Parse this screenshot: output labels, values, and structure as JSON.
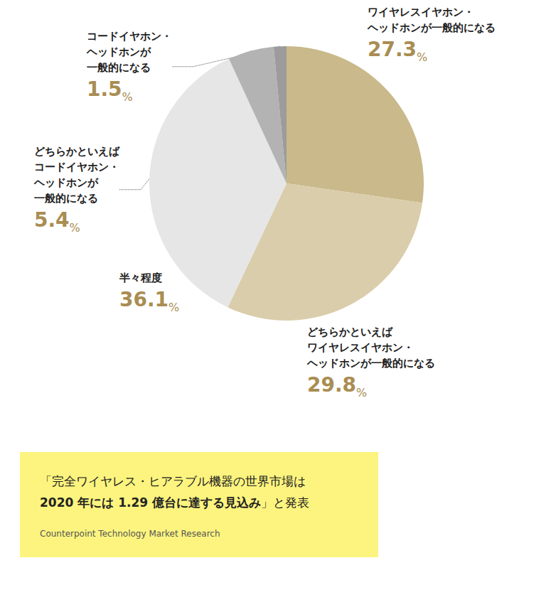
{
  "chart_data": {
    "type": "pie",
    "categories": [
      "ワイヤレスイヤホン・\nヘッドホンが一般的になる",
      "どちらかといえば\nワイヤレスイヤホン・\nヘッドホンが一般的になる",
      "半々程度",
      "どちらかといえば\nコードイヤホン・\nヘッドホンが\n一般的になる",
      "コードイヤホン・\nヘッドホンが\n一般的になる"
    ],
    "values": [
      27.3,
      29.8,
      36.1,
      5.4,
      1.5
    ],
    "value_labels": [
      "27.3%",
      "29.8%",
      "36.1%",
      "5.4%",
      "1.5%"
    ],
    "colors": [
      "#c9b98b",
      "#dacdab",
      "#e6e6e6",
      "#b3b3b3",
      "#9c9c9c"
    ],
    "data_labels": true,
    "annotation": {
      "lines": [
        "「完全ワイヤレス・ヒアラブル機器の世界市場は"
      ],
      "bold": "2020 年には 1.29 億台に達する見込み",
      "after": "」と発表",
      "source": "Counterpoint Technology Market Research"
    }
  }
}
